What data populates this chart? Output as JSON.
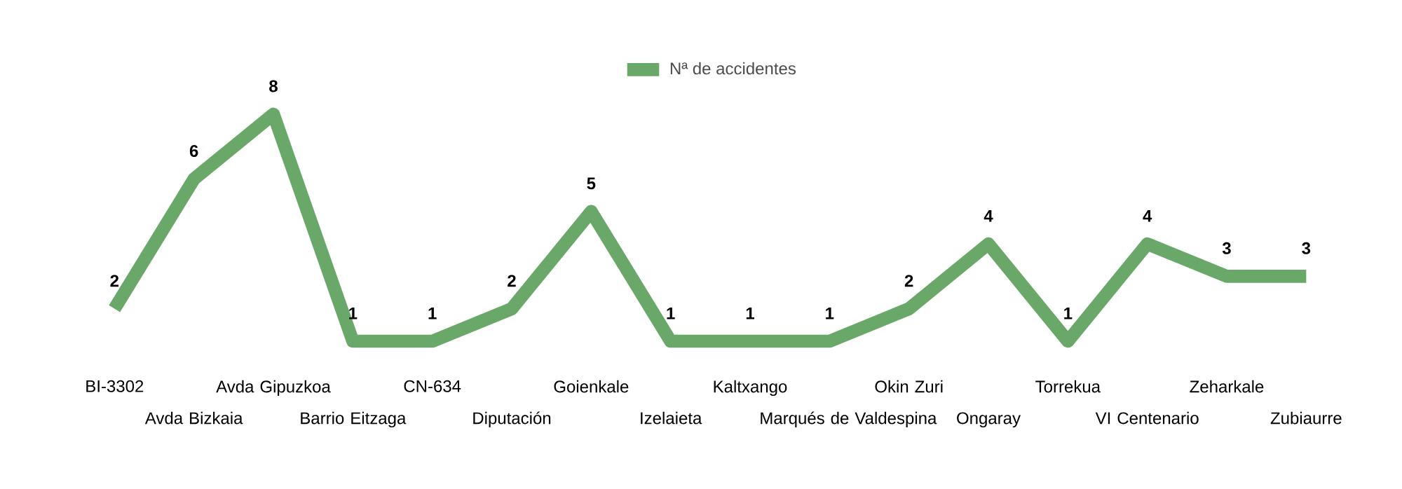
{
  "chart_data": {
    "type": "line",
    "categories": [
      "BI-3302",
      "Avda Bizkaia",
      "Avda Gipuzkoa",
      "Barrio Eitzaga",
      "CN-634",
      "Diputación",
      "Goienkale",
      "Izelaieta",
      "Kaltxango",
      "Marqués de Valdespina",
      "Okin Zuri",
      "Ongaray",
      "Torrekua",
      "VI Centenario",
      "Zeharkale",
      "Zubiaurre"
    ],
    "series": [
      {
        "name": "Nª de accidentes",
        "color": "#6aa86a",
        "values": [
          2,
          6,
          8,
          1,
          1,
          2,
          5,
          1,
          1,
          1,
          2,
          4,
          1,
          4,
          3,
          3
        ]
      }
    ],
    "data_labels": true,
    "legend": "top",
    "marker": "none",
    "line_style": "solid"
  }
}
